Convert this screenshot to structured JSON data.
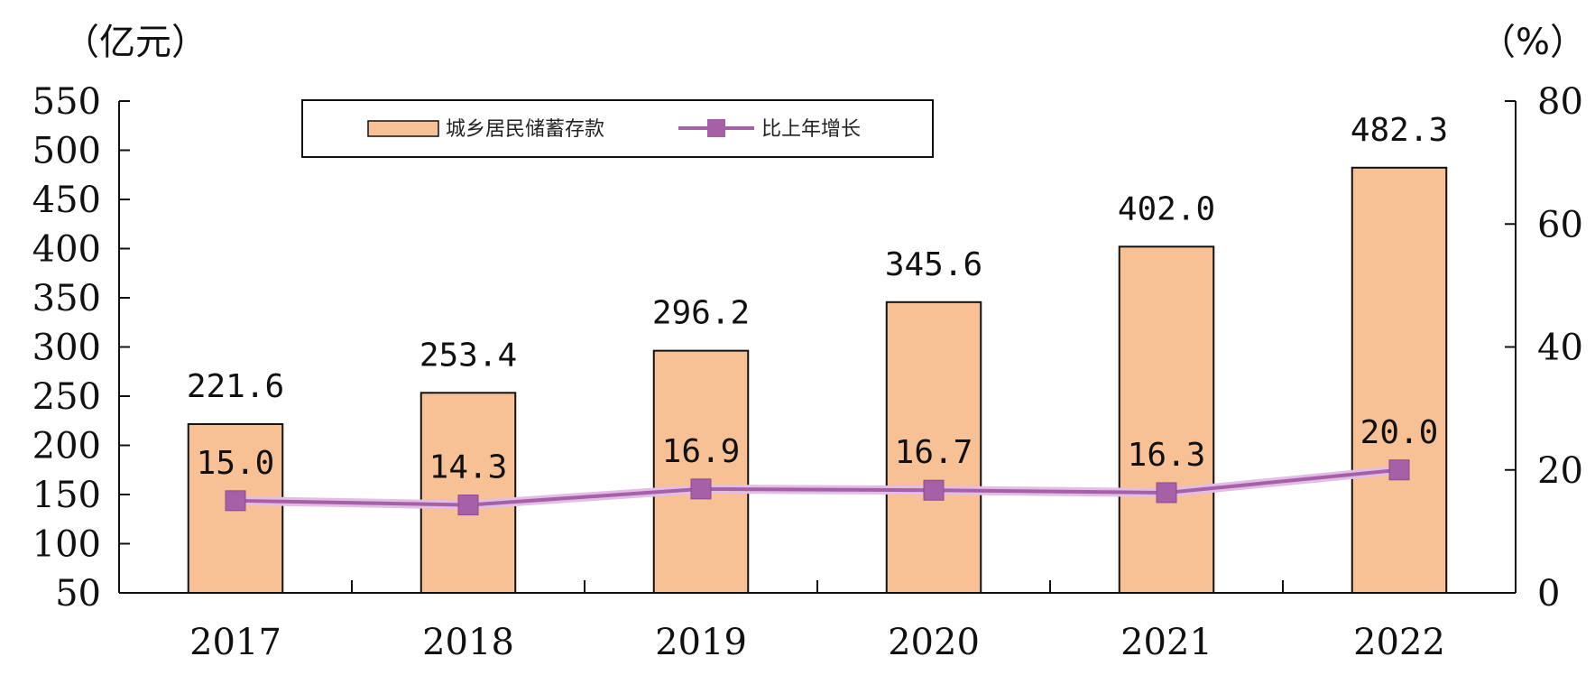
{
  "chart_data": {
    "type": "bar",
    "categories": [
      "2017",
      "2018",
      "2019",
      "2020",
      "2021",
      "2022"
    ],
    "series": [
      {
        "name": "城乡居民储蓄存款",
        "type": "bar",
        "axis": "left",
        "values": [
          221.6,
          253.4,
          296.2,
          345.6,
          402.0,
          482.3
        ],
        "labels": [
          "221.6",
          "253.4",
          "296.2",
          "345.6",
          "402.0",
          "482.3"
        ],
        "color": "#f8c195"
      },
      {
        "name": "比上年增长",
        "type": "line",
        "axis": "right",
        "values": [
          15.0,
          14.3,
          16.9,
          16.7,
          16.3,
          20.0
        ],
        "labels": [
          "15.0",
          "14.3",
          "16.9",
          "16.7",
          "16.3",
          "20.0"
        ],
        "color": "#a560a8"
      }
    ],
    "left_unit": "（亿元）",
    "right_unit": "（%）",
    "ylim_left": [
      50,
      550
    ],
    "yticks_left": [
      "50",
      "100",
      "150",
      "200",
      "250",
      "300",
      "350",
      "400",
      "450",
      "500",
      "550"
    ],
    "ylim_right": [
      0,
      80
    ],
    "yticks_right": [
      "0",
      "20",
      "40",
      "60",
      "80"
    ],
    "legend_position": "top-center",
    "grid": false
  }
}
